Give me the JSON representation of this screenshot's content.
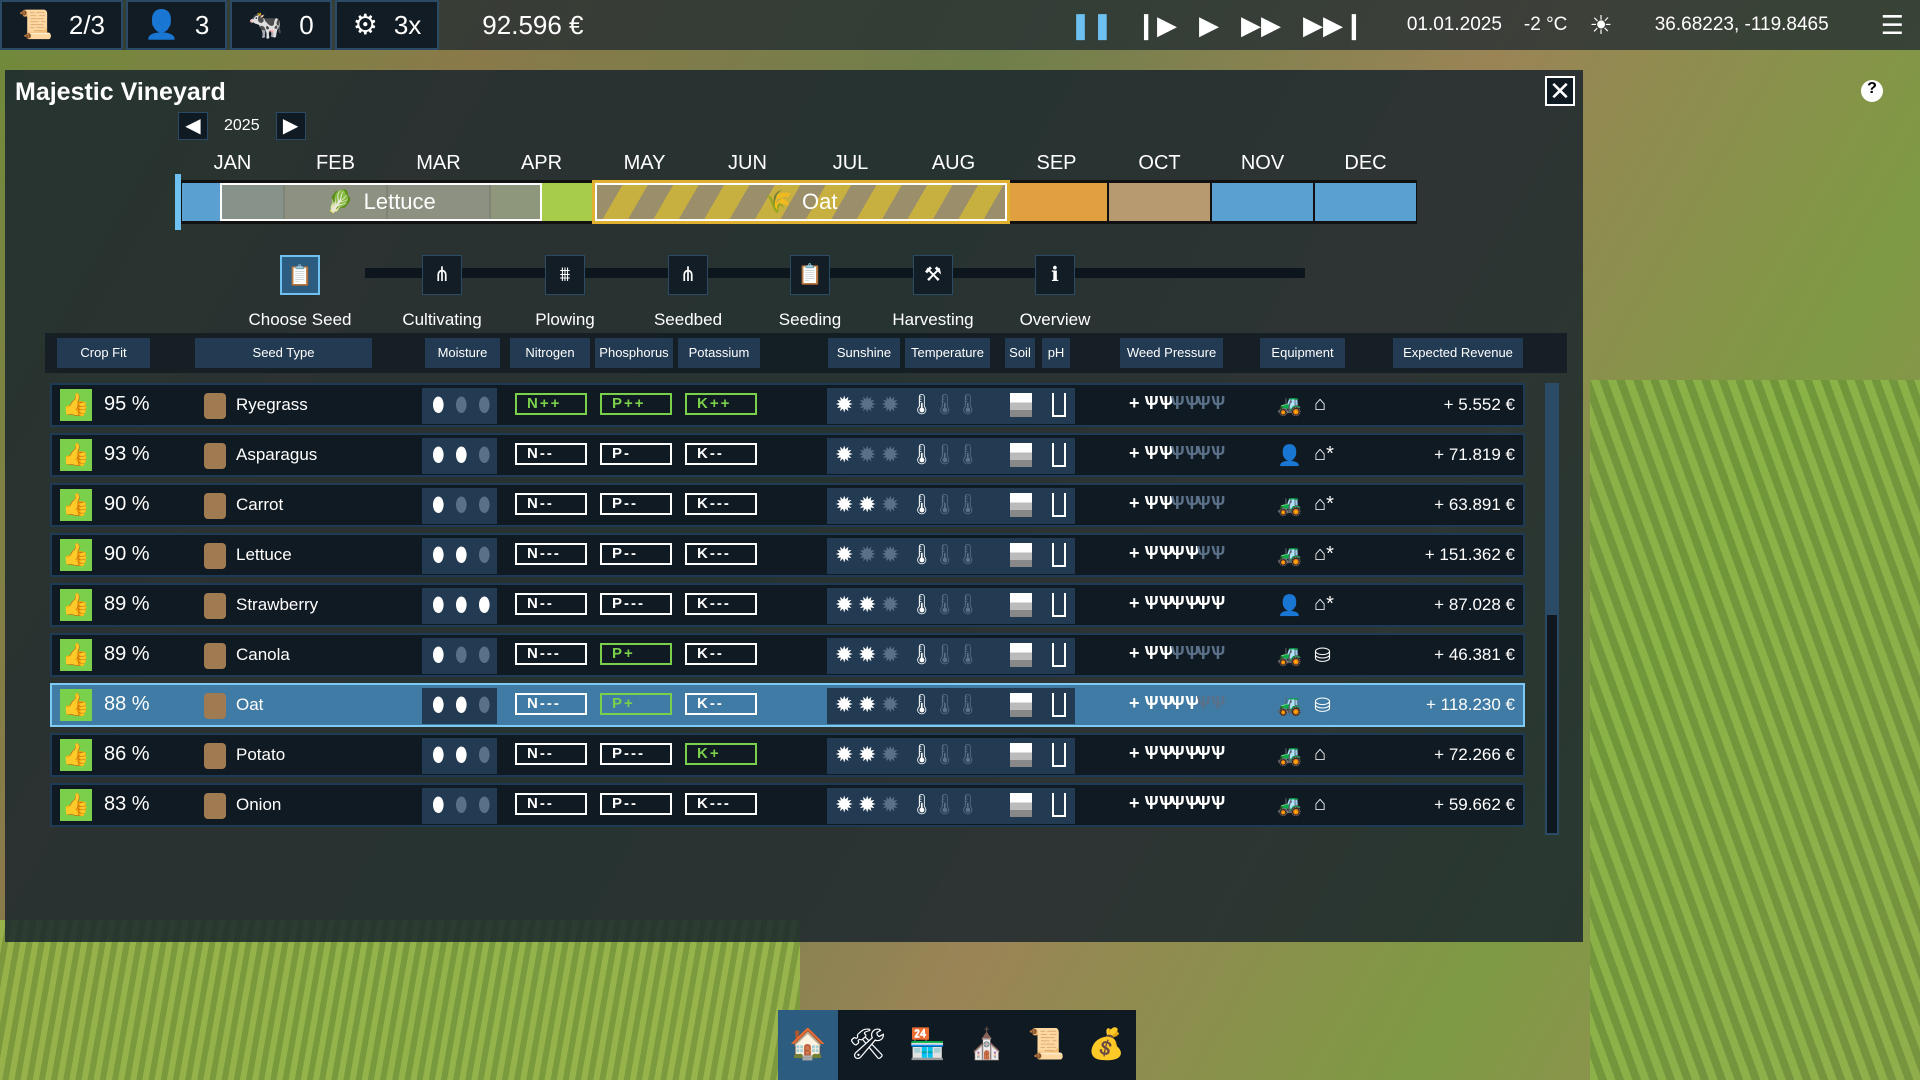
{
  "topbar": {
    "contracts": "2/3",
    "workers": "3",
    "animals": "0",
    "speed": "3x",
    "money": "92.596 €",
    "date": "01.01.2025",
    "temperature": "-2 °C",
    "coordinates": "36.68223, -119.8465",
    "icons": [
      "contract-icon",
      "worker-icon",
      "cow-icon",
      "gear-wheat-icon",
      "pause-icon",
      "step-icon",
      "play-icon",
      "fast-forward-icon",
      "skip-icon",
      "sun-icon",
      "menu-icon"
    ]
  },
  "window": {
    "title": "Majestic Vineyard",
    "year": "2025"
  },
  "months": [
    "JAN",
    "FEB",
    "MAR",
    "APR",
    "MAY",
    "JUN",
    "JUL",
    "AUG",
    "SEP",
    "OCT",
    "NOV",
    "DEC"
  ],
  "season_colors": [
    "#5aa0d0",
    "#8a8f82",
    "#8a8f82",
    "#a6cc4a",
    "#c8b040",
    "#c8b040",
    "#c8b040",
    "#c8b040",
    "#e0a040",
    "#b89a70",
    "#5aa0d0",
    "#5aa0d0"
  ],
  "timeline": {
    "crop1": "Lettuce",
    "crop2": "Oat"
  },
  "steps": [
    "Choose Seed",
    "Cultivating",
    "Plowing",
    "Seedbed",
    "Seeding",
    "Harvesting",
    "Overview"
  ],
  "headers": [
    "Crop Fit",
    "Seed Type",
    "Moisture",
    "Nitrogen",
    "Phosphorus",
    "Potassium",
    "Sunshine",
    "Temperature",
    "Soil",
    "pH",
    "Weed Pressure",
    "Equipment",
    "Expected Revenue"
  ],
  "rows": [
    {
      "fit": "95 %",
      "name": "Ryegrass",
      "moisture": 1,
      "n": "N++",
      "p": "P++",
      "k": "K++",
      "nh": true,
      "ph": true,
      "kh": true,
      "sun": 1,
      "weed": 1,
      "equip": "tractor",
      "storage": "barn",
      "revenue": "+ 5.552 €"
    },
    {
      "fit": "93 %",
      "name": "Asparagus",
      "moisture": 2,
      "n": "N--",
      "p": "P-",
      "k": "K--",
      "sun": 1,
      "weed": 1,
      "equip": "worker",
      "storage": "cold-storage",
      "revenue": "+ 71.819 €"
    },
    {
      "fit": "90 %",
      "name": "Carrot",
      "moisture": 1,
      "n": "N--",
      "p": "P--",
      "k": "K---",
      "sun": 2,
      "weed": 1,
      "equip": "tractor",
      "storage": "cold-storage",
      "revenue": "+ 63.891 €"
    },
    {
      "fit": "90 %",
      "name": "Lettuce",
      "moisture": 2,
      "n": "N---",
      "p": "P--",
      "k": "K---",
      "sun": 1,
      "weed": 2,
      "equip": "tractor",
      "storage": "cold-storage",
      "revenue": "+ 151.362 €"
    },
    {
      "fit": "89 %",
      "name": "Strawberry",
      "moisture": 3,
      "n": "N--",
      "p": "P---",
      "k": "K---",
      "sun": 2,
      "weed": 3,
      "equip": "worker",
      "storage": "cold-storage",
      "revenue": "+ 87.028 €"
    },
    {
      "fit": "89 %",
      "name": "Canola",
      "moisture": 1,
      "n": "N---",
      "p": "P+",
      "k": "K--",
      "ph": true,
      "sun": 2,
      "weed": 1,
      "equip": "tractor",
      "storage": "silo",
      "revenue": "+ 46.381 €"
    },
    {
      "fit": "88 %",
      "name": "Oat",
      "moisture": 2,
      "n": "N---",
      "p": "P+",
      "k": "K--",
      "ph": true,
      "sun": 2,
      "weed": 2,
      "equip": "tractor",
      "storage": "silo",
      "revenue": "+ 118.230 €",
      "selected": true
    },
    {
      "fit": "86 %",
      "name": "Potato",
      "moisture": 2,
      "n": "N--",
      "p": "P---",
      "k": "K+",
      "kh": true,
      "sun": 2,
      "weed": 3,
      "equip": "tractor",
      "storage": "barn",
      "revenue": "+ 72.266 €"
    },
    {
      "fit": "83 %",
      "name": "Onion",
      "moisture": 1,
      "n": "N--",
      "p": "P--",
      "k": "K---",
      "sun": 2,
      "weed": 3,
      "equip": "tractor",
      "storage": "barn",
      "revenue": "+ 59.662 €"
    }
  ],
  "bottom_icons": [
    "farm-icon",
    "tools-icon",
    "market-icon",
    "research-icon",
    "contracts-icon",
    "finance-icon"
  ]
}
